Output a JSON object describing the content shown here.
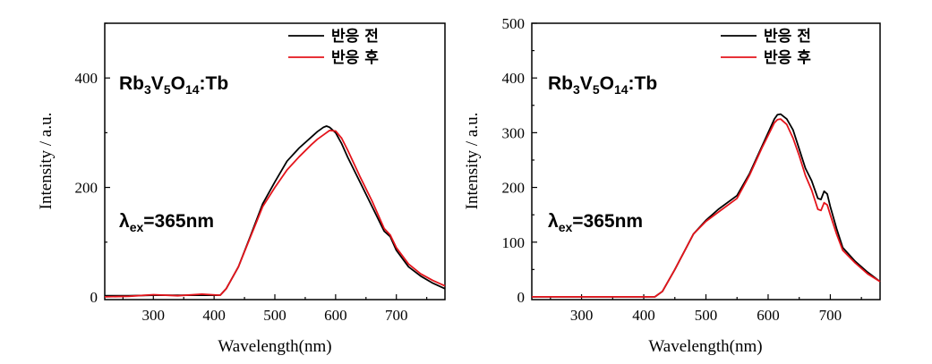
{
  "colors": {
    "before": "#000000",
    "after": "#e4141b"
  },
  "chart_data": [
    {
      "type": "line",
      "title": "",
      "xlabel": "Wavelength(nm)",
      "ylabel": "Intensity / a.u.",
      "xlim": [
        220,
        780
      ],
      "ylim": [
        -5,
        500
      ],
      "xticks": [
        300,
        400,
        500,
        600,
        700
      ],
      "yticks": [
        0,
        200,
        400
      ],
      "grid": false,
      "legend_position": "top-right",
      "annotations": {
        "compound": {
          "base1": "Rb",
          "sub1": "3",
          "base2": "V",
          "sub2": "5",
          "base3": "O",
          "sub3": "14",
          "tail": ":Tb"
        },
        "excitation": {
          "base": "λ",
          "sub": "ex",
          "tail": "=365nm"
        }
      },
      "series": [
        {
          "name": "반응 전",
          "color": "#000000",
          "x": [
            220,
            260,
            300,
            340,
            380,
            410,
            420,
            440,
            460,
            480,
            500,
            520,
            540,
            560,
            570,
            580,
            585,
            590,
            600,
            610,
            620,
            640,
            660,
            680,
            690,
            700,
            720,
            740,
            760,
            780
          ],
          "y": [
            2,
            2,
            3,
            3,
            3,
            3,
            15,
            55,
            112,
            170,
            210,
            248,
            272,
            292,
            302,
            310,
            312,
            310,
            300,
            280,
            255,
            210,
            165,
            120,
            110,
            85,
            55,
            38,
            25,
            15
          ]
        },
        {
          "name": "반응 후",
          "color": "#e4141b",
          "x": [
            220,
            260,
            300,
            340,
            380,
            410,
            420,
            440,
            460,
            480,
            500,
            520,
            540,
            560,
            570,
            580,
            590,
            600,
            610,
            620,
            640,
            660,
            680,
            690,
            700,
            720,
            740,
            760,
            780
          ],
          "y": [
            0,
            1,
            4,
            2,
            5,
            3,
            15,
            55,
            110,
            165,
            200,
            232,
            256,
            278,
            288,
            296,
            304,
            303,
            290,
            268,
            220,
            175,
            125,
            113,
            90,
            60,
            42,
            30,
            20
          ]
        }
      ]
    },
    {
      "type": "line",
      "title": "",
      "xlabel": "Wavelength(nm)",
      "ylabel": "Intensity / a.u.",
      "xlim": [
        220,
        780
      ],
      "ylim": [
        -5,
        500
      ],
      "xticks": [
        300,
        400,
        500,
        600,
        700
      ],
      "yticks": [
        0,
        100,
        200,
        300,
        400,
        500
      ],
      "grid": false,
      "legend_position": "top-right",
      "annotations": {
        "compound": {
          "base1": "Rb",
          "sub1": "3",
          "base2": "V",
          "sub2": "5",
          "base3": "O",
          "sub3": "14",
          "tail": ":Tb"
        },
        "excitation": {
          "base": "λ",
          "sub": "ex",
          "tail": "=365nm"
        }
      },
      "series": [
        {
          "name": "반응 전",
          "color": "#000000",
          "x": [
            220,
            300,
            380,
            418,
            430,
            450,
            480,
            500,
            520,
            550,
            570,
            590,
            600,
            610,
            615,
            620,
            630,
            640,
            650,
            660,
            670,
            680,
            685,
            690,
            695,
            700,
            710,
            720,
            740,
            760,
            780
          ],
          "y": [
            0,
            0,
            0,
            0,
            10,
            50,
            115,
            140,
            160,
            185,
            225,
            275,
            300,
            325,
            333,
            334,
            325,
            305,
            270,
            235,
            212,
            180,
            178,
            193,
            188,
            165,
            125,
            90,
            65,
            45,
            28
          ]
        },
        {
          "name": "반응 후",
          "color": "#e4141b",
          "x": [
            220,
            300,
            380,
            418,
            430,
            450,
            480,
            500,
            520,
            550,
            570,
            590,
            600,
            610,
            615,
            620,
            630,
            640,
            650,
            660,
            670,
            680,
            685,
            690,
            695,
            700,
            710,
            720,
            740,
            760,
            780
          ],
          "y": [
            0,
            0,
            0,
            0,
            10,
            50,
            115,
            138,
            155,
            180,
            222,
            272,
            295,
            318,
            324,
            325,
            315,
            290,
            258,
            222,
            195,
            160,
            158,
            172,
            168,
            150,
            115,
            85,
            62,
            42,
            28
          ]
        }
      ]
    }
  ]
}
